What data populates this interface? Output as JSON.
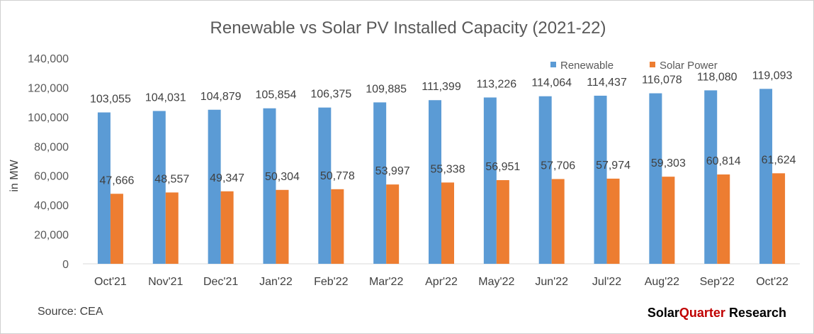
{
  "chart_data": {
    "type": "bar",
    "title": "Renewable vs Solar PV Installed Capacity (2021-22)",
    "ylabel": "in MW",
    "xlabel": "",
    "ylim": [
      0,
      140000
    ],
    "yticks": [
      0,
      20000,
      40000,
      60000,
      80000,
      100000,
      120000,
      140000
    ],
    "ytick_labels": [
      "0",
      "20,000",
      "40,000",
      "60,000",
      "80,000",
      "100,000",
      "120,000",
      "140,000"
    ],
    "grid": false,
    "legend_position": "top-right",
    "categories": [
      "Oct'21",
      "Nov'21",
      "Dec'21",
      "Jan'22",
      "Feb'22",
      "Mar'22",
      "Apr'22",
      "May'22",
      "Jun'22",
      "Jul'22",
      "Aug'22",
      "Sep'22",
      "Oct'22"
    ],
    "series": [
      {
        "name": "Renewable",
        "color": "#5b9bd5",
        "values": [
          103055,
          104031,
          104879,
          105854,
          106375,
          109885,
          111399,
          113226,
          114064,
          114437,
          116078,
          118080,
          119093
        ],
        "labels": [
          "103,055",
          "104,031",
          "104,879",
          "105,854",
          "106,375",
          "109,885",
          "111,399",
          "113,226",
          "114,064",
          "114,437",
          "116,078",
          "118,080",
          "119,093"
        ]
      },
      {
        "name": "Solar Power",
        "color": "#ed7d31",
        "values": [
          47666,
          48557,
          49347,
          50304,
          50778,
          53997,
          55338,
          56951,
          57706,
          57974,
          59303,
          60814,
          61624
        ],
        "labels": [
          "47,666",
          "48,557",
          "49,347",
          "50,304",
          "50,778",
          "53,997",
          "55,338",
          "56,951",
          "57,706",
          "57,974",
          "59,303",
          "60,814",
          "61,624"
        ]
      }
    ]
  },
  "footer": {
    "source": "Source: CEA",
    "brand_part1": "Solar",
    "brand_part2": "Quarter",
    "brand_part3": " Research"
  }
}
